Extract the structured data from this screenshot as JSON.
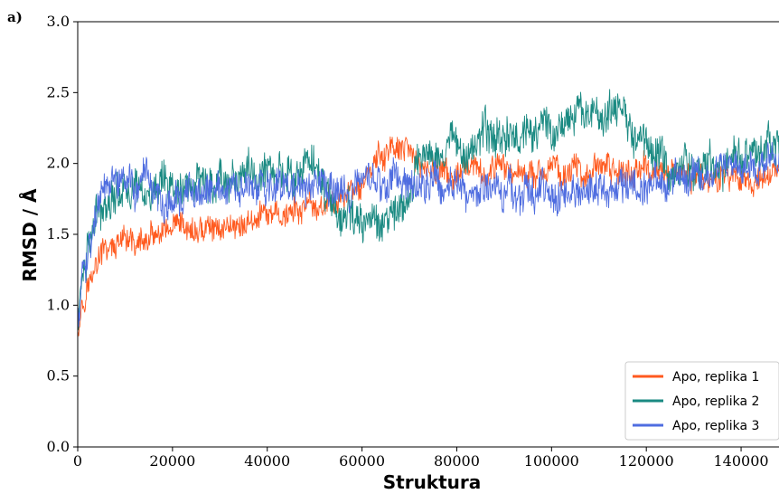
{
  "chart_data": {
    "type": "line",
    "panel_label": "a)",
    "title": "",
    "xlabel": "Struktura",
    "ylabel": "RMSD / Å",
    "xlim": [
      0,
      148000
    ],
    "ylim": [
      0.0,
      3.0
    ],
    "xticks": [
      0,
      20000,
      40000,
      60000,
      80000,
      100000,
      120000,
      140000
    ],
    "xtick_labels": [
      "0",
      "20000",
      "40000",
      "60000",
      "80000",
      "100000",
      "120000",
      "140000"
    ],
    "yticks": [
      0.0,
      0.5,
      1.0,
      1.5,
      2.0,
      2.5,
      3.0
    ],
    "ytick_labels": [
      "0.0",
      "0.5",
      "1.0",
      "1.5",
      "2.0",
      "2.5",
      "3.0"
    ],
    "grid": false,
    "legend_position": "lower-right",
    "series": [
      {
        "name": "Apo, replika 1",
        "color": "#ff5a1f",
        "x": [
          0,
          1000,
          2000,
          3000,
          4000,
          5000,
          7000,
          10000,
          15000,
          20000,
          25000,
          30000,
          35000,
          40000,
          45000,
          50000,
          55000,
          60000,
          63000,
          66000,
          70000,
          75000,
          80000,
          90000,
          100000,
          110000,
          120000,
          130000,
          140000,
          148000
        ],
        "values": [
          0.85,
          1.05,
          1.15,
          1.2,
          1.3,
          1.35,
          1.4,
          1.42,
          1.45,
          1.5,
          1.52,
          1.55,
          1.58,
          1.62,
          1.65,
          1.68,
          1.75,
          1.85,
          2.0,
          2.1,
          2.05,
          1.95,
          1.9,
          1.95,
          1.95,
          1.95,
          1.95,
          1.92,
          1.9,
          1.9
        ],
        "noise": 0.07
      },
      {
        "name": "Apo, replika 2",
        "color": "#1a8a82",
        "x": [
          0,
          1000,
          2000,
          3000,
          5000,
          7000,
          10000,
          15000,
          20000,
          25000,
          30000,
          35000,
          40000,
          45000,
          50000,
          54000,
          56000,
          60000,
          65000,
          70000,
          72000,
          80000,
          90000,
          100000,
          105000,
          110000,
          115000,
          120000,
          125000,
          130000,
          140000,
          148000
        ],
        "values": [
          0.85,
          1.2,
          1.4,
          1.5,
          1.7,
          1.8,
          1.85,
          1.8,
          1.78,
          1.85,
          1.9,
          1.92,
          1.95,
          1.95,
          1.95,
          1.75,
          1.6,
          1.58,
          1.62,
          1.72,
          2.05,
          2.15,
          2.2,
          2.25,
          2.35,
          2.35,
          2.3,
          2.2,
          1.95,
          2.0,
          2.05,
          2.15
        ],
        "noise": 0.1
      },
      {
        "name": "Apo, replika 3",
        "color": "#4f6de0",
        "x": [
          0,
          1000,
          2000,
          3000,
          5000,
          7000,
          10000,
          15000,
          20000,
          30000,
          40000,
          50000,
          60000,
          70000,
          80000,
          90000,
          100000,
          110000,
          120000,
          130000,
          140000,
          148000
        ],
        "values": [
          0.85,
          1.2,
          1.4,
          1.55,
          1.75,
          1.85,
          1.85,
          1.78,
          1.75,
          1.78,
          1.82,
          1.82,
          1.85,
          1.9,
          1.85,
          1.8,
          1.8,
          1.8,
          1.85,
          1.95,
          2.0,
          2.0
        ],
        "noise": 0.09
      }
    ]
  }
}
